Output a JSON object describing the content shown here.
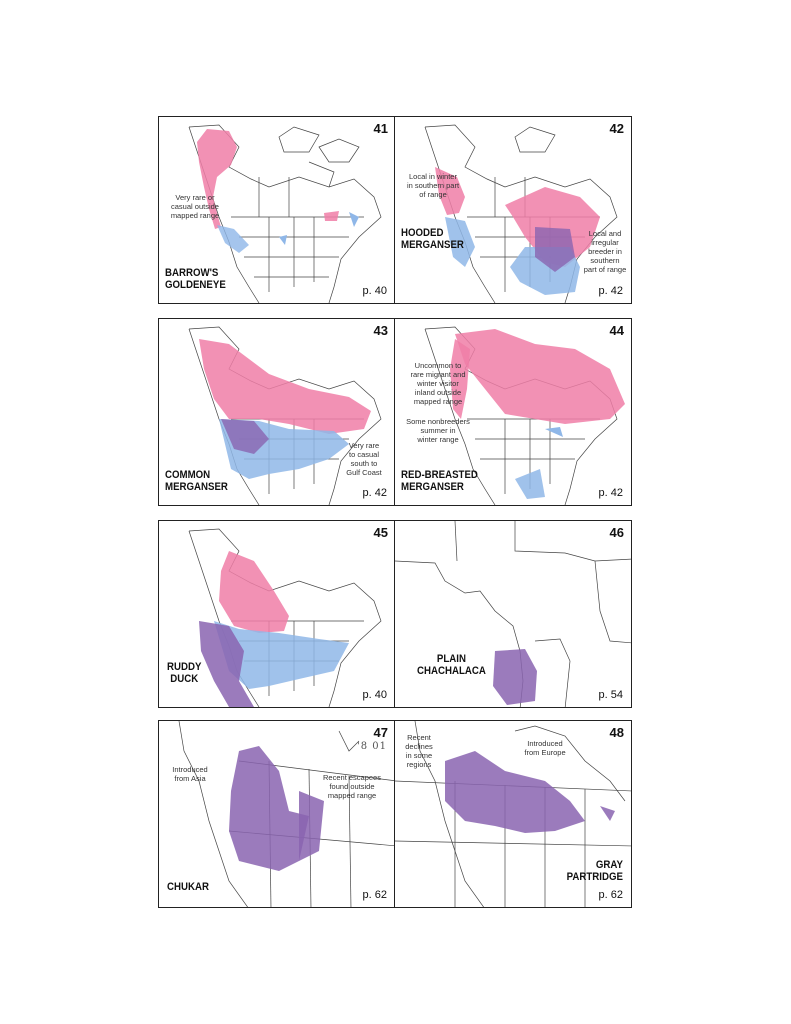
{
  "colors": {
    "breeding": "#f07ea7",
    "winter": "#8fb7e8",
    "year_round": "#8a64b0",
    "border": "#222222"
  },
  "panels": [
    {
      "number": "41",
      "name_lines": [
        "BARROW'S",
        "GOLDENEYE"
      ],
      "page": "p. 40",
      "notes": [
        {
          "lines": [
            "Very rare or",
            "casual outside",
            "mapped range"
          ]
        }
      ]
    },
    {
      "number": "42",
      "name_lines": [
        "HOODED",
        "MERGANSER"
      ],
      "page": "p. 42",
      "notes": [
        {
          "lines": [
            "Local in winter",
            "in southern part",
            "of range"
          ]
        },
        {
          "lines": [
            "Local and",
            "irregular",
            "breeder in",
            "southern",
            "part of range"
          ]
        }
      ]
    },
    {
      "number": "43",
      "name_lines": [
        "COMMON",
        "MERGANSER"
      ],
      "page": "p. 42",
      "notes": [
        {
          "lines": [
            "Very rare",
            "to casual",
            "south to",
            "Gulf Coast"
          ]
        }
      ]
    },
    {
      "number": "44",
      "name_lines": [
        "RED-BREASTED",
        "MERGANSER"
      ],
      "page": "p. 42",
      "notes": [
        {
          "lines": [
            "Uncommon to",
            "rare migrant and",
            "winter visitor",
            "inland outside",
            "mapped range"
          ]
        },
        {
          "lines": [
            "Some nonbreeders",
            "summer in",
            "winter range"
          ]
        }
      ]
    },
    {
      "number": "45",
      "name_lines": [
        "RUDDY",
        "DUCK"
      ],
      "page": "p. 40",
      "notes": []
    },
    {
      "number": "46",
      "name_lines": [
        "PLAIN",
        "CHACHALACA"
      ],
      "page": "p. 54",
      "notes": []
    },
    {
      "number": "47",
      "handwritten": "'8 01",
      "name_lines": [
        "CHUKAR"
      ],
      "page": "p. 62",
      "notes": [
        {
          "lines": [
            "Introduced",
            "from Asia"
          ]
        },
        {
          "lines": [
            "Recent escapees",
            "found outside",
            "mapped range"
          ]
        }
      ]
    },
    {
      "number": "48",
      "name_lines": [
        "GRAY",
        "PARTRIDGE"
      ],
      "page": "p. 62",
      "notes": [
        {
          "lines": [
            "Recent",
            "declines",
            "in some",
            "regions"
          ]
        },
        {
          "lines": [
            "Introduced",
            "from Europe"
          ]
        }
      ]
    }
  ]
}
